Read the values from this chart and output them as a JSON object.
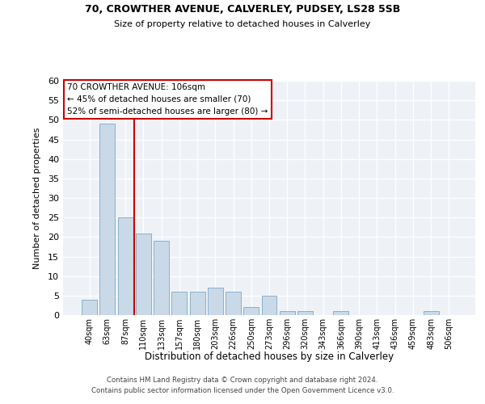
{
  "title1": "70, CROWTHER AVENUE, CALVERLEY, PUDSEY, LS28 5SB",
  "title2": "Size of property relative to detached houses in Calverley",
  "xlabel": "Distribution of detached houses by size in Calverley",
  "ylabel": "Number of detached properties",
  "footer1": "Contains HM Land Registry data © Crown copyright and database right 2024.",
  "footer2": "Contains public sector information licensed under the Open Government Licence v3.0.",
  "annotation_line1": "70 CROWTHER AVENUE: 106sqm",
  "annotation_line2": "← 45% of detached houses are smaller (70)",
  "annotation_line3": "52% of semi-detached houses are larger (80) →",
  "bar_categories": [
    "40sqm",
    "63sqm",
    "87sqm",
    "110sqm",
    "133sqm",
    "157sqm",
    "180sqm",
    "203sqm",
    "226sqm",
    "250sqm",
    "273sqm",
    "296sqm",
    "320sqm",
    "343sqm",
    "366sqm",
    "390sqm",
    "413sqm",
    "436sqm",
    "459sqm",
    "483sqm",
    "506sqm"
  ],
  "bar_values": [
    4,
    49,
    25,
    21,
    19,
    6,
    6,
    7,
    6,
    2,
    5,
    1,
    1,
    0,
    1,
    0,
    0,
    0,
    0,
    1,
    0
  ],
  "bar_color": "#c9d9e8",
  "bar_edge_color": "#7da7c4",
  "vline_color": "#cc0000",
  "vline_index": 3,
  "ylim": [
    0,
    60
  ],
  "yticks": [
    0,
    5,
    10,
    15,
    20,
    25,
    30,
    35,
    40,
    45,
    50,
    55,
    60
  ],
  "bg_color": "#eef2f7",
  "annotation_box_color": "#ffffff",
  "annotation_box_edge": "#cc0000"
}
